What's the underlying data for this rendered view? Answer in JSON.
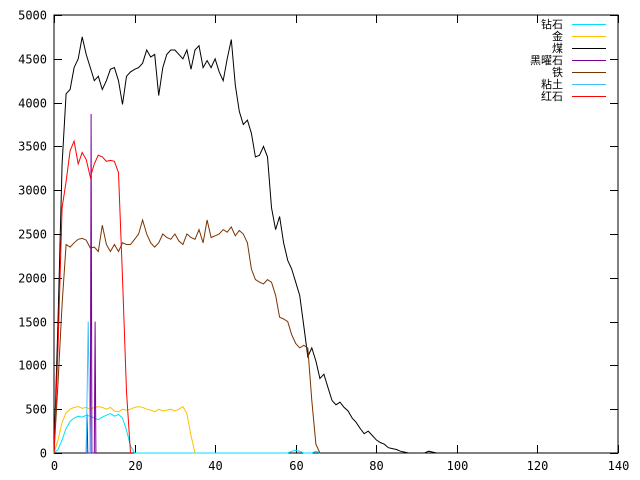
{
  "chart_data": {
    "type": "line",
    "title": "",
    "xlabel": "",
    "ylabel": "",
    "xlim": [
      0,
      140
    ],
    "ylim": [
      0,
      5000
    ],
    "xticks": [
      0,
      20,
      40,
      60,
      80,
      100,
      120,
      140
    ],
    "yticks": [
      0,
      500,
      1000,
      1500,
      2000,
      2500,
      3000,
      3500,
      4000,
      4500,
      5000
    ],
    "grid": false,
    "legend_position": "top-right",
    "series": [
      {
        "name": "钻石",
        "color": "#00e0ff",
        "points": [
          [
            0,
            0
          ],
          [
            1,
            40
          ],
          [
            2,
            150
          ],
          [
            3,
            280
          ],
          [
            4,
            360
          ],
          [
            5,
            400
          ],
          [
            6,
            420
          ],
          [
            7,
            410
          ],
          [
            8,
            430
          ],
          [
            9,
            420
          ],
          [
            10,
            400
          ],
          [
            11,
            380
          ],
          [
            12,
            410
          ],
          [
            13,
            430
          ],
          [
            14,
            450
          ],
          [
            15,
            420
          ],
          [
            16,
            440
          ],
          [
            17,
            400
          ],
          [
            18,
            260
          ],
          [
            19,
            80
          ],
          [
            20,
            0
          ],
          [
            58,
            0
          ],
          [
            59,
            20
          ],
          [
            60,
            30
          ],
          [
            61,
            20
          ],
          [
            62,
            0
          ],
          [
            64,
            0
          ],
          [
            65,
            20
          ],
          [
            66,
            0
          ]
        ]
      },
      {
        "name": "金",
        "color": "#ffc000",
        "points": [
          [
            0,
            0
          ],
          [
            1,
            150
          ],
          [
            2,
            350
          ],
          [
            3,
            460
          ],
          [
            4,
            500
          ],
          [
            5,
            520
          ],
          [
            6,
            530
          ],
          [
            7,
            510
          ],
          [
            8,
            520
          ],
          [
            9,
            500
          ],
          [
            10,
            520
          ],
          [
            11,
            530
          ],
          [
            12,
            520
          ],
          [
            13,
            500
          ],
          [
            14,
            520
          ],
          [
            15,
            480
          ],
          [
            16,
            470
          ],
          [
            17,
            500
          ],
          [
            18,
            490
          ],
          [
            19,
            500
          ],
          [
            20,
            520
          ],
          [
            21,
            530
          ],
          [
            22,
            520
          ],
          [
            23,
            500
          ],
          [
            24,
            490
          ],
          [
            25,
            470
          ],
          [
            26,
            500
          ],
          [
            27,
            480
          ],
          [
            28,
            490
          ],
          [
            29,
            500
          ],
          [
            30,
            480
          ],
          [
            31,
            500
          ],
          [
            32,
            530
          ],
          [
            33,
            450
          ],
          [
            34,
            200
          ],
          [
            35,
            0
          ]
        ]
      },
      {
        "name": "煤",
        "color": "#000000",
        "points": [
          [
            0,
            0
          ],
          [
            1,
            1500
          ],
          [
            2,
            3300
          ],
          [
            3,
            4100
          ],
          [
            4,
            4150
          ],
          [
            5,
            4400
          ],
          [
            6,
            4500
          ],
          [
            7,
            4750
          ],
          [
            8,
            4550
          ],
          [
            9,
            4400
          ],
          [
            10,
            4250
          ],
          [
            11,
            4300
          ],
          [
            12,
            4150
          ],
          [
            13,
            4250
          ],
          [
            14,
            4380
          ],
          [
            15,
            4400
          ],
          [
            16,
            4250
          ],
          [
            17,
            3980
          ],
          [
            18,
            4300
          ],
          [
            19,
            4350
          ],
          [
            20,
            4380
          ],
          [
            21,
            4400
          ],
          [
            22,
            4450
          ],
          [
            23,
            4600
          ],
          [
            24,
            4520
          ],
          [
            25,
            4550
          ],
          [
            26,
            4080
          ],
          [
            27,
            4400
          ],
          [
            28,
            4550
          ],
          [
            29,
            4600
          ],
          [
            30,
            4600
          ],
          [
            31,
            4550
          ],
          [
            32,
            4500
          ],
          [
            33,
            4600
          ],
          [
            34,
            4380
          ],
          [
            35,
            4600
          ],
          [
            36,
            4650
          ],
          [
            37,
            4400
          ],
          [
            38,
            4480
          ],
          [
            39,
            4400
          ],
          [
            40,
            4500
          ],
          [
            41,
            4350
          ],
          [
            42,
            4250
          ],
          [
            43,
            4500
          ],
          [
            44,
            4720
          ],
          [
            45,
            4200
          ],
          [
            46,
            3900
          ],
          [
            47,
            3750
          ],
          [
            48,
            3800
          ],
          [
            49,
            3650
          ],
          [
            50,
            3380
          ],
          [
            51,
            3400
          ],
          [
            52,
            3500
          ],
          [
            53,
            3380
          ],
          [
            54,
            2800
          ],
          [
            55,
            2550
          ],
          [
            56,
            2700
          ],
          [
            57,
            2400
          ],
          [
            58,
            2200
          ],
          [
            59,
            2100
          ],
          [
            60,
            1950
          ],
          [
            61,
            1800
          ],
          [
            62,
            1450
          ],
          [
            63,
            1100
          ],
          [
            64,
            1200
          ],
          [
            65,
            1050
          ],
          [
            66,
            850
          ],
          [
            67,
            900
          ],
          [
            68,
            750
          ],
          [
            69,
            600
          ],
          [
            70,
            550
          ],
          [
            71,
            580
          ],
          [
            72,
            520
          ],
          [
            73,
            480
          ],
          [
            74,
            400
          ],
          [
            75,
            350
          ],
          [
            76,
            280
          ],
          [
            77,
            220
          ],
          [
            78,
            250
          ],
          [
            79,
            200
          ],
          [
            80,
            150
          ],
          [
            81,
            120
          ],
          [
            82,
            100
          ],
          [
            83,
            60
          ],
          [
            84,
            50
          ],
          [
            85,
            40
          ],
          [
            86,
            20
          ],
          [
            87,
            10
          ],
          [
            88,
            0
          ],
          [
            92,
            0
          ],
          [
            93,
            20
          ],
          [
            94,
            10
          ],
          [
            95,
            0
          ]
        ]
      },
      {
        "name": "黑曜石",
        "color": "#7a0099",
        "points": [
          [
            8,
            0
          ],
          [
            8.2,
            450
          ],
          [
            8.4,
            0
          ],
          [
            9,
            0
          ],
          [
            9.2,
            3870
          ],
          [
            9.4,
            0
          ],
          [
            10,
            0
          ],
          [
            10.2,
            1500
          ],
          [
            10.4,
            0
          ]
        ]
      },
      {
        "name": "铁",
        "color": "#7a3300",
        "points": [
          [
            0,
            0
          ],
          [
            1,
            800
          ],
          [
            2,
            1700
          ],
          [
            3,
            2380
          ],
          [
            4,
            2350
          ],
          [
            5,
            2400
          ],
          [
            6,
            2440
          ],
          [
            7,
            2450
          ],
          [
            8,
            2430
          ],
          [
            9,
            2340
          ],
          [
            10,
            2350
          ],
          [
            11,
            2300
          ],
          [
            12,
            2600
          ],
          [
            13,
            2380
          ],
          [
            14,
            2300
          ],
          [
            15,
            2380
          ],
          [
            16,
            2300
          ],
          [
            17,
            2400
          ],
          [
            18,
            2380
          ],
          [
            19,
            2380
          ],
          [
            20,
            2440
          ],
          [
            21,
            2500
          ],
          [
            22,
            2660
          ],
          [
            23,
            2500
          ],
          [
            24,
            2400
          ],
          [
            25,
            2350
          ],
          [
            26,
            2400
          ],
          [
            27,
            2500
          ],
          [
            28,
            2460
          ],
          [
            29,
            2440
          ],
          [
            30,
            2500
          ],
          [
            31,
            2420
          ],
          [
            32,
            2380
          ],
          [
            33,
            2500
          ],
          [
            34,
            2460
          ],
          [
            35,
            2440
          ],
          [
            36,
            2550
          ],
          [
            37,
            2400
          ],
          [
            38,
            2660
          ],
          [
            39,
            2460
          ],
          [
            40,
            2480
          ],
          [
            41,
            2500
          ],
          [
            42,
            2550
          ],
          [
            43,
            2520
          ],
          [
            44,
            2580
          ],
          [
            45,
            2480
          ],
          [
            46,
            2540
          ],
          [
            47,
            2500
          ],
          [
            48,
            2400
          ],
          [
            49,
            2100
          ],
          [
            50,
            1980
          ],
          [
            51,
            1950
          ],
          [
            52,
            1930
          ],
          [
            53,
            1980
          ],
          [
            54,
            1950
          ],
          [
            55,
            1800
          ],
          [
            56,
            1550
          ],
          [
            57,
            1530
          ],
          [
            58,
            1500
          ],
          [
            59,
            1350
          ],
          [
            60,
            1250
          ],
          [
            61,
            1200
          ],
          [
            62,
            1230
          ],
          [
            63,
            1200
          ],
          [
            64,
            600
          ],
          [
            65,
            100
          ],
          [
            66,
            0
          ]
        ]
      },
      {
        "name": "粘土",
        "color": "#40c0ff",
        "points": [
          [
            8,
            0
          ],
          [
            8.5,
            1500
          ],
          [
            9,
            0
          ]
        ]
      },
      {
        "name": "红石",
        "color": "#ff0000",
        "points": [
          [
            0,
            0
          ],
          [
            1,
            1200
          ],
          [
            2,
            2800
          ],
          [
            3,
            3100
          ],
          [
            4,
            3450
          ],
          [
            5,
            3560
          ],
          [
            6,
            3300
          ],
          [
            7,
            3430
          ],
          [
            8,
            3350
          ],
          [
            9,
            3150
          ],
          [
            10,
            3300
          ],
          [
            11,
            3400
          ],
          [
            12,
            3380
          ],
          [
            13,
            3330
          ],
          [
            14,
            3340
          ],
          [
            15,
            3330
          ],
          [
            16,
            3200
          ],
          [
            17,
            2000
          ],
          [
            18,
            700
          ],
          [
            19,
            0
          ]
        ]
      }
    ]
  }
}
